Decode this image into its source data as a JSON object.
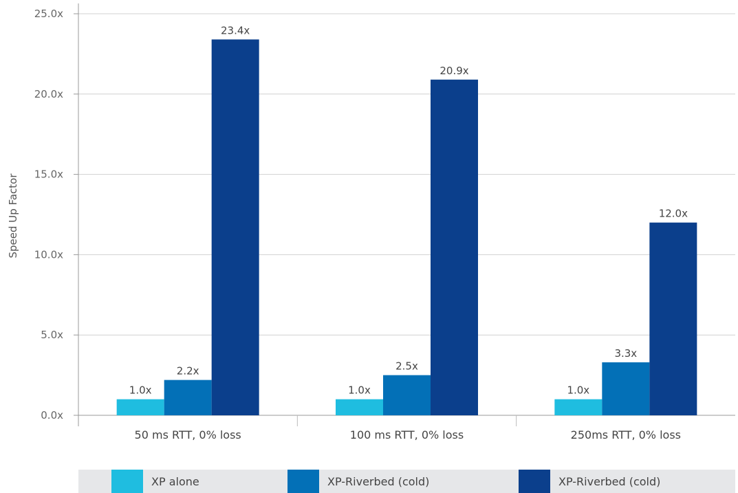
{
  "chart_data": {
    "type": "bar",
    "title": "",
    "xlabel": "",
    "ylabel": "Speed Up Factor",
    "ylim": [
      0,
      25
    ],
    "yticks": [
      "0.0x",
      "5.0x",
      "10.0x",
      "15.0x",
      "20.0x",
      "25.0x"
    ],
    "grid": true,
    "legend_position": "bottom",
    "categories": [
      "50 ms RTT, 0% loss",
      "100 ms RTT, 0% loss",
      "250ms RTT, 0% loss"
    ],
    "series": [
      {
        "name": "XP alone",
        "color": "#1fbde0",
        "values": [
          1.0,
          1.0,
          1.0
        ],
        "labels": [
          "1.0x",
          "1.0x",
          "1.0x"
        ]
      },
      {
        "name": "XP-Riverbed (cold)",
        "color": "#0370b7",
        "values": [
          2.2,
          2.5,
          3.3
        ],
        "labels": [
          "2.2x",
          "2.5x",
          "3.3x"
        ]
      },
      {
        "name": "XP-Riverbed (cold)",
        "color": "#0b3f8c",
        "values": [
          23.4,
          20.9,
          12.0
        ],
        "labels": [
          "23.4x",
          "20.9x",
          "12.0x"
        ]
      }
    ]
  }
}
